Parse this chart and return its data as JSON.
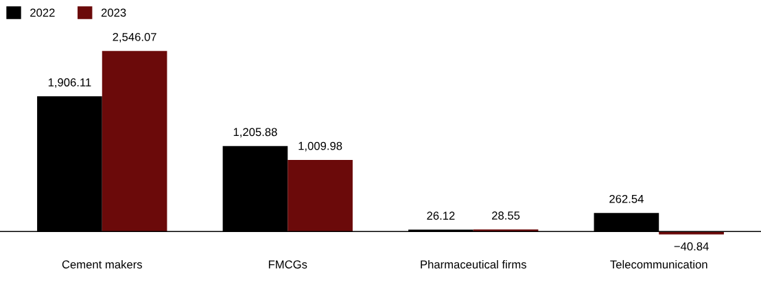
{
  "chart_data": {
    "type": "bar",
    "categories": [
      "Cement makers",
      "FMCGs",
      "Pharmaceutical firms",
      "Telecommunication"
    ],
    "series": [
      {
        "name": "2022",
        "color": "#000000",
        "values": [
          1906.11,
          1205.88,
          26.12,
          262.54
        ],
        "value_labels": [
          "1,906.11",
          "1,205.88",
          "26.12",
          "262.54"
        ]
      },
      {
        "name": "2023",
        "color": "#6b0a0a",
        "values": [
          2546.07,
          1009.98,
          28.55,
          -40.84
        ],
        "value_labels": [
          "2,546.07",
          "1,009.98",
          "28.55",
          "−40.84"
        ]
      }
    ],
    "legend": "top left",
    "grid": false
  }
}
